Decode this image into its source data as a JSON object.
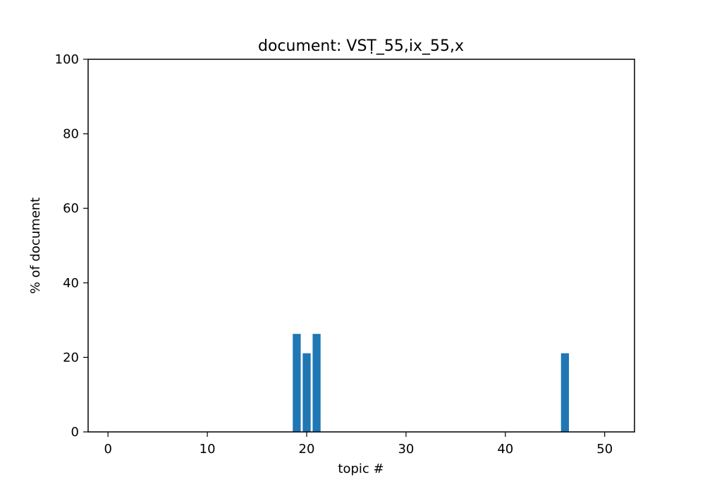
{
  "chart_data": {
    "type": "bar",
    "title": "document: VSṬ_55,ix_55,x",
    "xlabel": "topic #",
    "ylabel": "% of document",
    "xlim": [
      -2,
      53
    ],
    "ylim": [
      0,
      100
    ],
    "xticks": [
      0,
      10,
      20,
      30,
      40,
      50
    ],
    "yticks": [
      0,
      20,
      40,
      60,
      80,
      100
    ],
    "grid": false,
    "bar_color": "#1f77b4",
    "x": [
      19,
      20,
      21,
      46
    ],
    "values": [
      26.3,
      21.1,
      26.3,
      21.1
    ]
  }
}
